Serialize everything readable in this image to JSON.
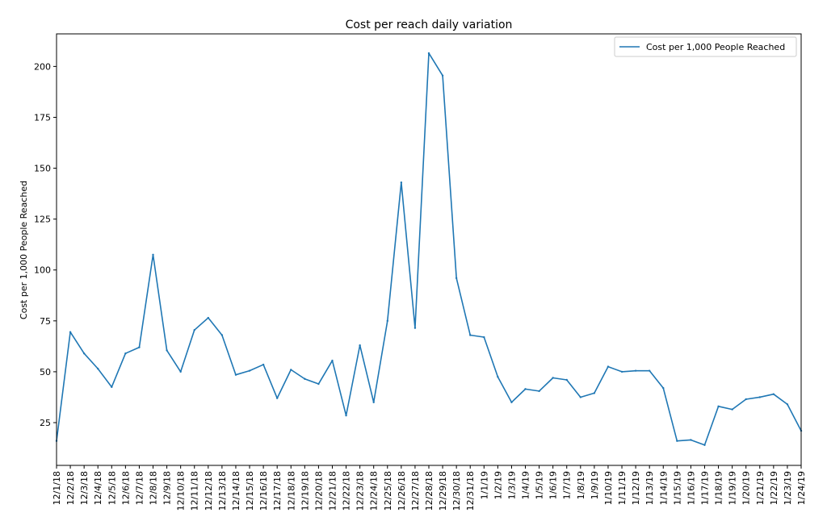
{
  "chart_data": {
    "type": "line",
    "title": "Cost per reach daily variation",
    "xlabel": "",
    "ylabel": "Cost per 1,000 People Reached",
    "categories": [
      "12/1/18",
      "12/2/18",
      "12/3/18",
      "12/4/18",
      "12/5/18",
      "12/6/18",
      "12/7/18",
      "12/8/18",
      "12/9/18",
      "12/10/18",
      "12/11/18",
      "12/12/18",
      "12/13/18",
      "12/14/18",
      "12/15/18",
      "12/16/18",
      "12/17/18",
      "12/18/18",
      "12/19/18",
      "12/20/18",
      "12/21/18",
      "12/22/18",
      "12/23/18",
      "12/24/18",
      "12/25/18",
      "12/26/18",
      "12/27/18",
      "12/28/18",
      "12/29/18",
      "12/30/18",
      "12/31/18",
      "1/1/19",
      "1/2/19",
      "1/3/19",
      "1/4/19",
      "1/5/19",
      "1/6/19",
      "1/7/19",
      "1/8/19",
      "1/9/19",
      "1/10/19",
      "1/11/19",
      "1/12/19",
      "1/13/19",
      "1/14/19",
      "1/15/19",
      "1/16/19",
      "1/17/19",
      "1/18/19",
      "1/19/19",
      "1/20/19",
      "1/21/19",
      "1/22/19",
      "1/23/19",
      "1/24/19"
    ],
    "series": [
      {
        "name": "Cost per 1,000 People Reached",
        "color": "#1f77b4",
        "values": [
          16,
          69.5,
          59,
          51.5,
          42.5,
          59,
          62,
          107.5,
          60.5,
          50,
          70.5,
          76.5,
          68,
          48.5,
          50.5,
          53.5,
          37,
          51,
          46.5,
          44,
          55.5,
          28.5,
          63,
          35,
          75,
          143,
          71.5,
          206.5,
          195.5,
          96,
          68,
          67,
          47.5,
          35,
          41.5,
          40.5,
          47,
          46,
          37.5,
          39.5,
          52.5,
          50,
          50.5,
          50.5,
          42,
          16,
          16.5,
          14,
          33,
          31.5,
          36.5,
          37.5,
          39,
          34,
          21
        ]
      }
    ],
    "ylim": [
      4,
      216
    ],
    "yticks": [
      25,
      50,
      75,
      100,
      125,
      150,
      175,
      200
    ],
    "grid": false,
    "legend": "top-right"
  }
}
